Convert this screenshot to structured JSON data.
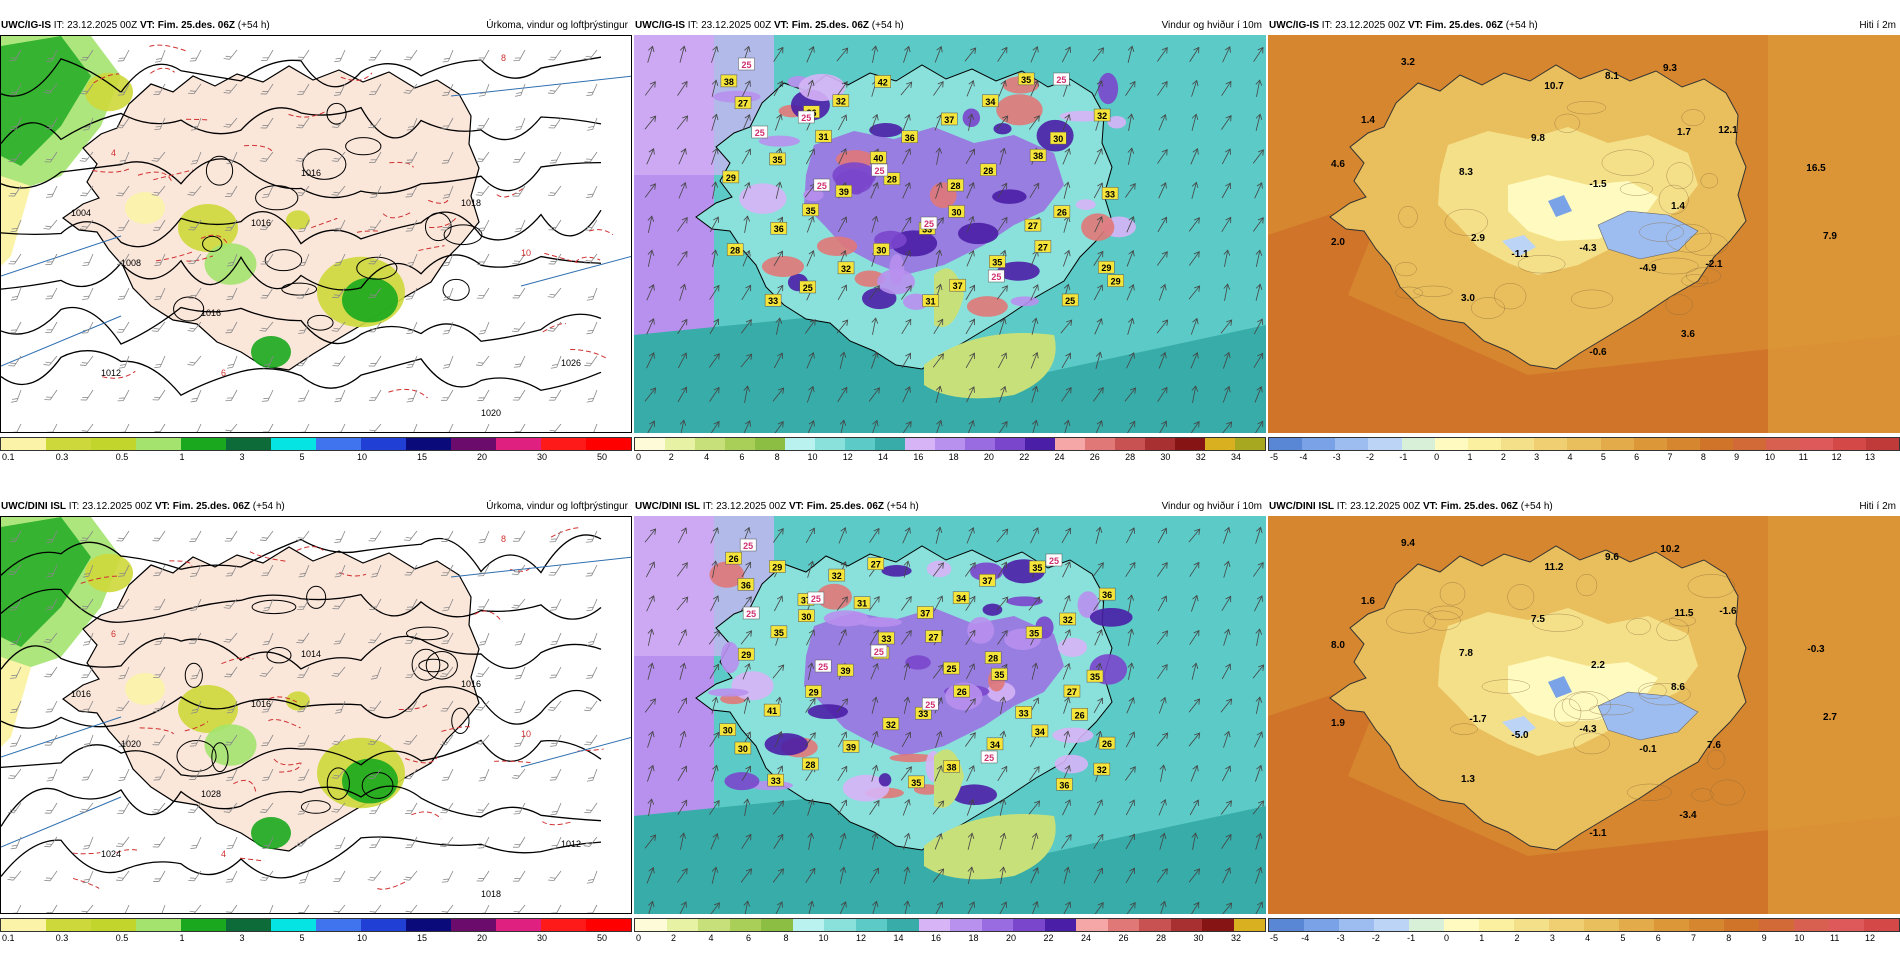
{
  "rows": [
    {
      "panels": [
        {
          "kind": "precip",
          "model": "UWC/IG-IS",
          "it": "IT: 23.12.2025 00Z",
          "vt_label": "VT:",
          "vt": "Fim. 25.des. 06Z",
          "lead": "(+54 h)",
          "title": "Úrkoma, vindur og loftþrýstingur",
          "colors": [
            "#fbf3a8",
            "#cdd83a",
            "#c2d52c",
            "#a3e36e",
            "#19a81e",
            "#0d6b3a",
            "#06e3e3",
            "#3f74ee",
            "#1f3fd5",
            "#0a0a7a",
            "#6b0b6b",
            "#e02080",
            "#ff1a1a",
            "#ff0000"
          ],
          "ticks": [
            "0.1",
            "0.3",
            "0.5",
            "1",
            "3",
            "5",
            "10",
            "15",
            "20",
            "30",
            "50"
          ],
          "iso_labels": [
            "1016",
            "1016",
            "1020",
            "1004",
            "1008",
            "1012",
            "1016",
            "1018",
            "1026",
            "8",
            "10",
            "4",
            "6"
          ]
        },
        {
          "kind": "wind",
          "model": "UWC/IG-IS",
          "it": "IT: 23.12.2025 00Z",
          "vt_label": "VT:",
          "vt": "Fim. 25.des. 06Z",
          "lead": "(+54 h)",
          "title": "Vindur og hviður í 10m",
          "colors": [
            "#fdfbd8",
            "#e8f2a4",
            "#c8e07a",
            "#a9cf58",
            "#8dbe44",
            "#b9f2ee",
            "#8ae0da",
            "#5ccac6",
            "#38aca8",
            "#d6b4f6",
            "#b890ee",
            "#9a6ce2",
            "#7a46cc",
            "#4a1ea6",
            "#f5a7a7",
            "#e07878",
            "#c85252",
            "#a83030",
            "#861414",
            "#d9b020",
            "#a8a820"
          ],
          "ticks": [
            "0",
            "2",
            "4",
            "6",
            "8",
            "10",
            "12",
            "14",
            "16",
            "18",
            "20",
            "22",
            "24",
            "26",
            "28",
            "30",
            "32",
            "34"
          ],
          "gust_labels": [
            "38",
            "26",
            "40",
            "28",
            "27",
            "29",
            "33",
            "32",
            "36",
            "28",
            "26",
            "28",
            "25",
            "42",
            "37",
            "38",
            "33",
            "36",
            "32",
            "31",
            "34",
            "30",
            "29",
            "35",
            "30",
            "37",
            "35",
            "32",
            "35",
            "39",
            "33",
            "35",
            "25",
            "27",
            "31",
            "28",
            "30",
            "27",
            "29"
          ],
          "white_labels": [
            "25",
            "25",
            "25",
            "25",
            "25",
            "25",
            "25",
            "25"
          ]
        },
        {
          "kind": "temp",
          "model": "UWC/IG-IS",
          "it": "IT: 23.12.2025 00Z",
          "vt_label": "VT:",
          "vt": "Fim. 25.des. 06Z",
          "lead": "(+54 h)",
          "title": "Hiti í 2m",
          "colors": [
            "#5a86d6",
            "#7aa2e6",
            "#9dbdf0",
            "#bcd4f6",
            "#d9f0d8",
            "#fffbc0",
            "#fbf0a0",
            "#f5e08a",
            "#efcf72",
            "#e9be5c",
            "#e3ab4a",
            "#dc9838",
            "#d6862e",
            "#cf7428",
            "#d26a38",
            "#d86050",
            "#de5a5a",
            "#d44848",
            "#c03a3a"
          ],
          "ticks": [
            "-5",
            "-4",
            "-3",
            "-2",
            "-1",
            "0",
            "1",
            "2",
            "3",
            "4",
            "5",
            "6",
            "7",
            "8",
            "9",
            "10",
            "11",
            "12",
            "13"
          ],
          "values": [
            "3.2",
            "1.4",
            "4.6",
            "10.7",
            "8.1",
            "9.3",
            "9.8",
            "8.3",
            "1.7",
            "12.1",
            "-1.5",
            "16.5",
            "1.4",
            "2.0",
            "2.9",
            "-4.3",
            "-1.1",
            "-4.9",
            "-2.1",
            "7.9",
            "3.0",
            "3.6",
            "-0.6"
          ]
        }
      ]
    },
    {
      "panels": [
        {
          "kind": "precip",
          "model": "UWC/DINI ISL",
          "it": "IT: 23.12.2025 00Z",
          "vt_label": "VT:",
          "vt": "Fim. 25.des. 06Z",
          "lead": "(+54 h)",
          "title": "Úrkoma, vindur og loftþrýstingur",
          "colors": [
            "#fbf3a8",
            "#cdd83a",
            "#c2d52c",
            "#a3e36e",
            "#19a81e",
            "#0d6b3a",
            "#06e3e3",
            "#3f74ee",
            "#1f3fd5",
            "#0a0a7a",
            "#6b0b6b",
            "#e02080",
            "#ff1a1a",
            "#ff0000"
          ],
          "ticks": [
            "0.1",
            "0.3",
            "0.5",
            "1",
            "3",
            "5",
            "10",
            "15",
            "20",
            "30",
            "50"
          ],
          "iso_labels": [
            "1014",
            "1016",
            "1018",
            "1016",
            "1020",
            "1024",
            "1028",
            "1016",
            "1012",
            "8",
            "10",
            "6",
            "4"
          ]
        },
        {
          "kind": "wind",
          "model": "UWC/DINI ISL",
          "it": "IT: 23.12.2025 00Z",
          "vt_label": "VT:",
          "vt": "Fim. 25.des. 06Z",
          "lead": "(+54 h)",
          "title": "Vindur og hviður í 10m",
          "colors": [
            "#fdfbd8",
            "#e8f2a4",
            "#c8e07a",
            "#a9cf58",
            "#8dbe44",
            "#b9f2ee",
            "#8ae0da",
            "#5ccac6",
            "#38aca8",
            "#d6b4f6",
            "#b890ee",
            "#9a6ce2",
            "#7a46cc",
            "#4a1ea6",
            "#f5a7a7",
            "#e07878",
            "#c85252",
            "#a83030",
            "#861414",
            "#d9b020"
          ],
          "ticks": [
            "0",
            "2",
            "4",
            "6",
            "8",
            "10",
            "12",
            "14",
            "16",
            "18",
            "20",
            "22",
            "24",
            "26",
            "28",
            "30",
            "32"
          ],
          "gust_labels": [
            "26",
            "37",
            "33",
            "25",
            "33",
            "26",
            "33",
            "32",
            "37",
            "28",
            "27",
            "30",
            "28",
            "27",
            "34",
            "35",
            "35",
            "41",
            "39",
            "35",
            "37",
            "32",
            "29",
            "29",
            "32",
            "38",
            "35",
            "36",
            "35",
            "39",
            "33",
            "34",
            "36",
            "36",
            "30",
            "30",
            "26",
            "34",
            "32",
            "29",
            "31",
            "27",
            "35",
            "26",
            "30"
          ],
          "white_labels": [
            "25",
            "25",
            "25",
            "25",
            "25",
            "25",
            "25",
            "25"
          ]
        },
        {
          "kind": "temp",
          "model": "UWC/DINI ISL",
          "it": "IT: 23.12.2025 00Z",
          "vt_label": "VT:",
          "vt": "Fim. 25.des. 06Z",
          "lead": "(+54 h)",
          "title": "Hiti í 2m",
          "colors": [
            "#5a86d6",
            "#7aa2e6",
            "#9dbdf0",
            "#bcd4f6",
            "#d9f0d8",
            "#fffbc0",
            "#fbf0a0",
            "#f5e08a",
            "#efcf72",
            "#e9be5c",
            "#e3ab4a",
            "#dc9838",
            "#d6862e",
            "#cf7428",
            "#d26a38",
            "#d86050",
            "#de5a5a",
            "#d44848"
          ],
          "ticks": [
            "-5",
            "-4",
            "-3",
            "-2",
            "-1",
            "0",
            "1",
            "2",
            "3",
            "4",
            "5",
            "6",
            "7",
            "8",
            "9",
            "10",
            "11",
            "12"
          ],
          "values": [
            "9.4",
            "1.6",
            "8.0",
            "11.2",
            "9.6",
            "10.2",
            "7.5",
            "7.8",
            "11.5",
            "-1.6",
            "2.2",
            "-0.3",
            "8.6",
            "1.9",
            "-1.7",
            "-4.3",
            "-5.0",
            "-0.1",
            "7.6",
            "2.7",
            "1.3",
            "-3.4",
            "-1.1"
          ]
        }
      ]
    }
  ]
}
